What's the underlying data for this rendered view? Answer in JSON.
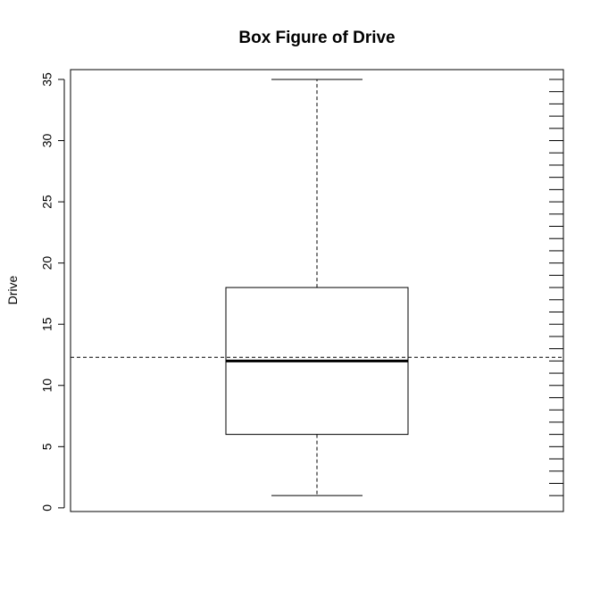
{
  "chart_data": {
    "type": "box",
    "title": "Box Figure of Drive",
    "xlabel": "",
    "ylabel": "Drive",
    "ylim": [
      -0.3,
      35.8
    ],
    "yticks": [
      0,
      5,
      10,
      15,
      20,
      25,
      30,
      35
    ],
    "ytick_labels": [
      "0",
      "5",
      "10",
      "15",
      "20",
      "25",
      "30",
      "35"
    ],
    "box": {
      "min": 1,
      "q1": 6,
      "median": 12,
      "q3": 18,
      "max": 35
    },
    "mean_line": 12.3,
    "rug_values": [
      1,
      2,
      3,
      4,
      5,
      6,
      7,
      8,
      9,
      10,
      11,
      12,
      13,
      14,
      15,
      16,
      17,
      18,
      19,
      20,
      21,
      22,
      23,
      24,
      25,
      26,
      27,
      28,
      29,
      30,
      31,
      32,
      33,
      34,
      35
    ],
    "grid": false,
    "legend": "none"
  }
}
